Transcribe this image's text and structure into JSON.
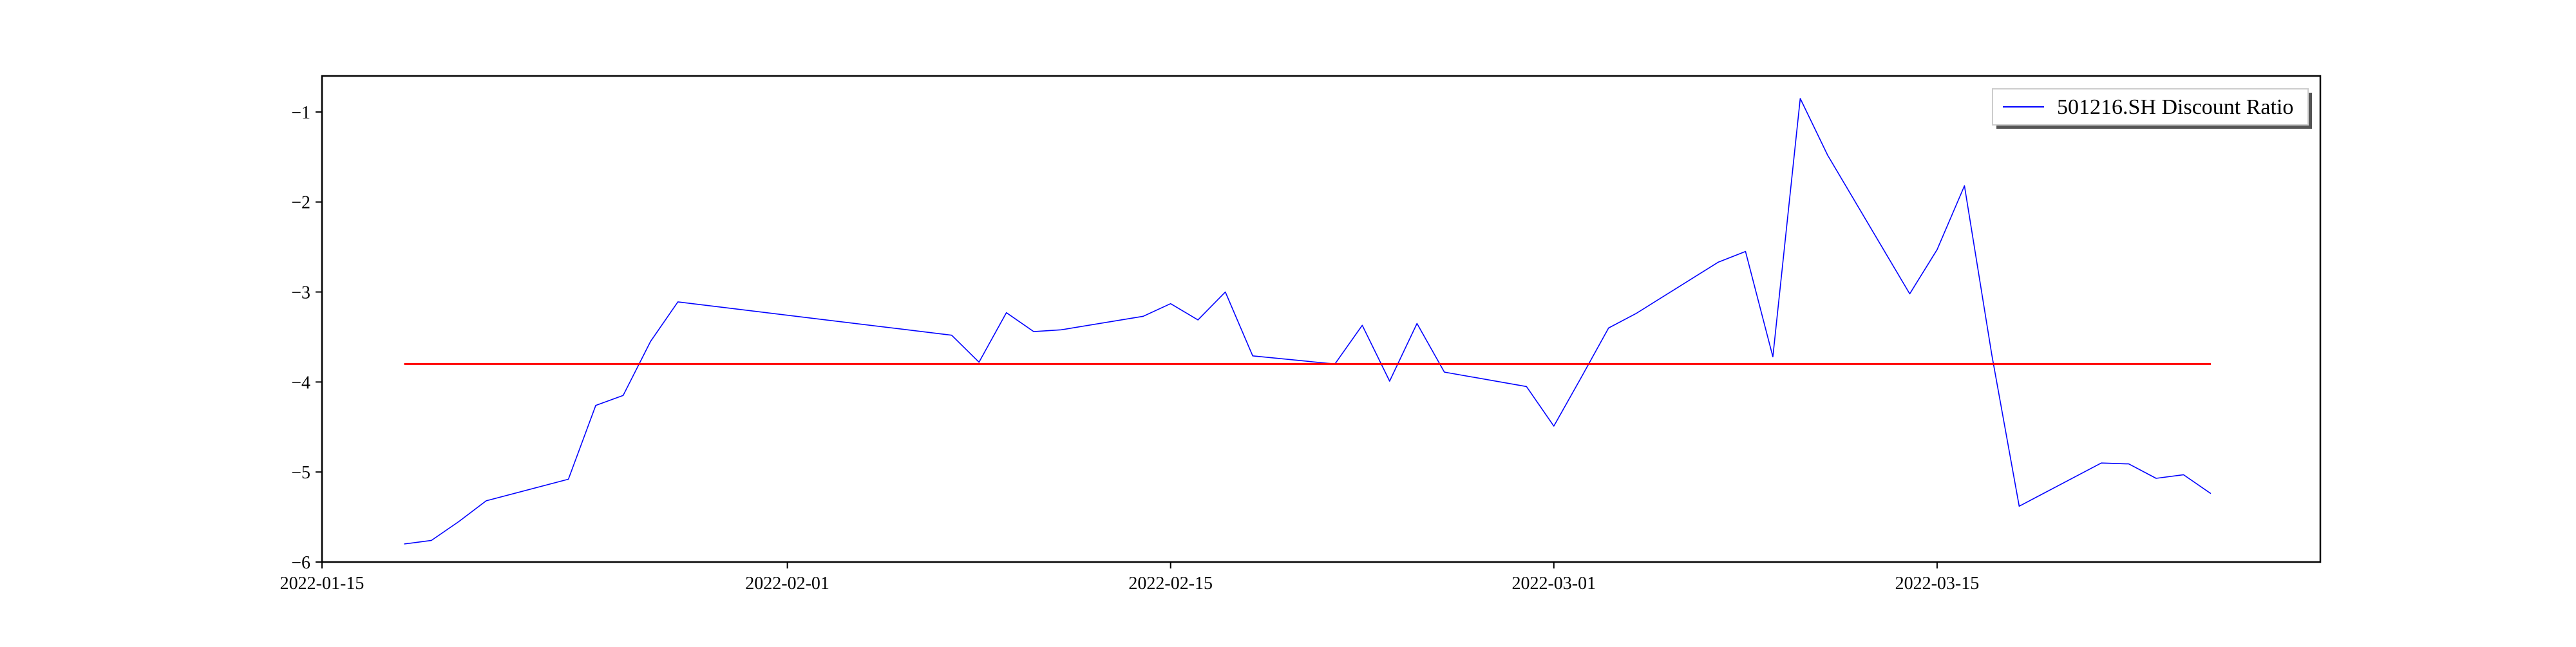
{
  "chart_data": {
    "type": "line",
    "title": "",
    "xlabel": "",
    "ylabel": "",
    "x_axis_type": "date",
    "xlim": [
      "2022-01-15",
      "2022-03-29"
    ],
    "ylim": [
      -6.0,
      -0.6
    ],
    "x_ticks": [
      "2022-01-15",
      "2022-02-01",
      "2022-02-15",
      "2022-03-01",
      "2022-03-15"
    ],
    "y_ticks": [
      -6,
      -5,
      -4,
      -3,
      -2,
      -1
    ],
    "grid": false,
    "legend_position": "top-right",
    "series": [
      {
        "name": "501216.SH Discount Ratio",
        "color": "#0000ff",
        "x": [
          "2022-01-18",
          "2022-01-19",
          "2022-01-20",
          "2022-01-21",
          "2022-01-24",
          "2022-01-25",
          "2022-01-26",
          "2022-01-27",
          "2022-01-28",
          "2022-02-07",
          "2022-02-08",
          "2022-02-09",
          "2022-02-10",
          "2022-02-11",
          "2022-02-14",
          "2022-02-15",
          "2022-02-16",
          "2022-02-17",
          "2022-02-18",
          "2022-02-21",
          "2022-02-22",
          "2022-02-23",
          "2022-02-24",
          "2022-02-25",
          "2022-02-28",
          "2022-03-01",
          "2022-03-02",
          "2022-03-03",
          "2022-03-04",
          "2022-03-07",
          "2022-03-08",
          "2022-03-09",
          "2022-03-10",
          "2022-03-11",
          "2022-03-14",
          "2022-03-15",
          "2022-03-16",
          "2022-03-17",
          "2022-03-18",
          "2022-03-21",
          "2022-03-22",
          "2022-03-23",
          "2022-03-24",
          "2022-03-25"
        ],
        "y": [
          -5.8,
          -5.76,
          -5.55,
          -5.32,
          -5.08,
          -4.26,
          -4.15,
          -3.55,
          -3.11,
          -3.48,
          -3.78,
          -3.23,
          -3.44,
          -3.42,
          -3.27,
          -3.13,
          -3.31,
          -3.0,
          -3.71,
          -3.8,
          -3.37,
          -3.99,
          -3.35,
          -3.89,
          -4.05,
          -4.49,
          -3.95,
          -3.4,
          -3.24,
          -2.67,
          -2.55,
          -3.72,
          -0.85,
          -1.48,
          -3.02,
          -2.53,
          -1.82,
          -3.7,
          -5.38,
          -4.9,
          -4.91,
          -5.07,
          -5.03,
          -5.24
        ]
      },
      {
        "name": "",
        "color": "#ff0000",
        "x": [
          "2022-01-18",
          "2022-03-25"
        ],
        "y": [
          -3.8,
          -3.8
        ]
      }
    ]
  }
}
